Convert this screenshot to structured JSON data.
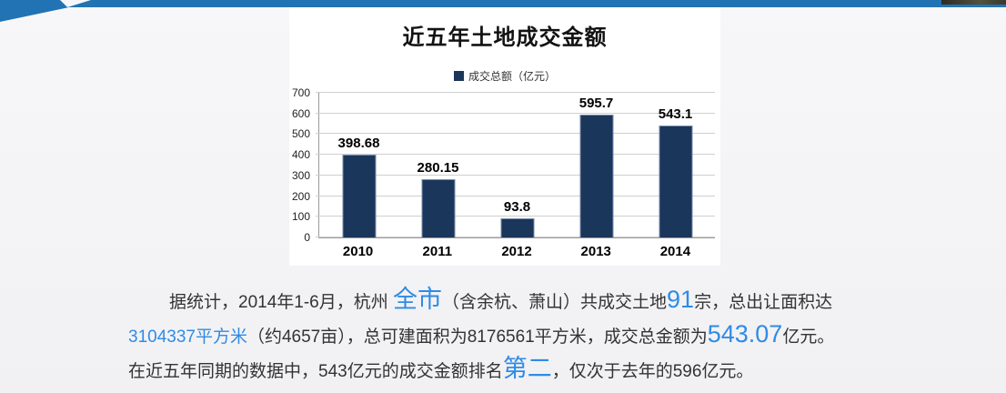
{
  "colors": {
    "top_bar": "#2173B4",
    "accent_blue": "#2F8BE6",
    "bar_fill": "#1B365B",
    "bar_border": "#7A8CA8",
    "grid_line": "#CFCFCF",
    "axis_line": "#9A9A9A",
    "panel_bg": "#FFFFFF",
    "text": "#333333"
  },
  "chart_data": {
    "type": "bar",
    "title": "近五年土地成交金额",
    "legend": [
      "成交总额（亿元）"
    ],
    "legend_position": "top",
    "categories": [
      "2010",
      "2011",
      "2012",
      "2013",
      "2014"
    ],
    "values": [
      398.68,
      280.15,
      93.8,
      595.7,
      543.1
    ],
    "labels": [
      "398.68",
      "280.15",
      "93.8",
      "595.7",
      "543.1"
    ],
    "xlabel": "",
    "ylabel": "",
    "ylim": [
      0,
      700
    ],
    "yticks": [
      0,
      100,
      200,
      300,
      400,
      500,
      600,
      700
    ],
    "grid": true
  },
  "paragraph": {
    "lines": [
      {
        "indent": true,
        "segments": [
          {
            "text": "据统计，2014年1-6月，杭州 ",
            "style": "normal"
          },
          {
            "text": "全市",
            "style": "blue-large"
          },
          {
            "text": "（含余杭、萧山）共成交土地",
            "style": "normal"
          },
          {
            "text": "91",
            "style": "blue-large"
          },
          {
            "text": "宗，总出让面积达",
            "style": "normal"
          }
        ]
      },
      {
        "indent": false,
        "segments": [
          {
            "text": "3104337平方米",
            "style": "blue"
          },
          {
            "text": "（约4657亩），总可建面积为8176561平方米，成交总金额为",
            "style": "normal"
          },
          {
            "text": "543.07",
            "style": "blue-large"
          },
          {
            "text": "亿元。",
            "style": "normal"
          }
        ]
      },
      {
        "indent": false,
        "segments": [
          {
            "text": "在近五年同期的数据中，543亿元的成交金额排名",
            "style": "normal"
          },
          {
            "text": "第二",
            "style": "blue-large"
          },
          {
            "text": "，仅次于去年的596亿元。",
            "style": "normal"
          }
        ]
      }
    ]
  }
}
